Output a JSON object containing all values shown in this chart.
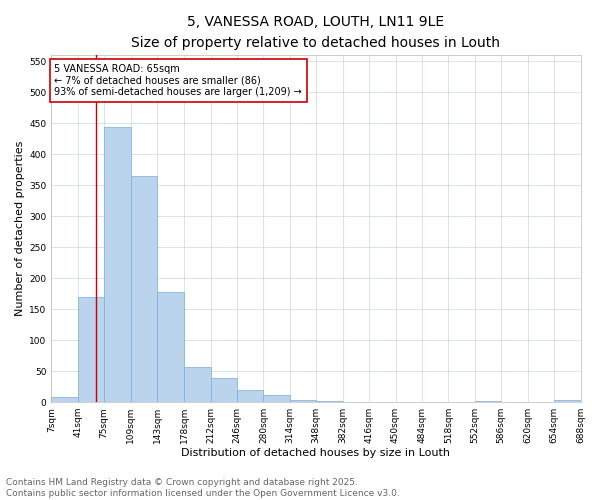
{
  "title": "5, VANESSA ROAD, LOUTH, LN11 9LE",
  "subtitle": "Size of property relative to detached houses in Louth",
  "xlabel": "Distribution of detached houses by size in Louth",
  "ylabel": "Number of detached properties",
  "bar_edges": [
    7,
    41,
    75,
    109,
    143,
    178,
    212,
    246,
    280,
    314,
    348,
    382,
    416,
    450,
    484,
    518,
    552,
    586,
    620,
    654,
    688
  ],
  "bar_heights": [
    8,
    170,
    443,
    365,
    178,
    56,
    39,
    20,
    11,
    3,
    1,
    0,
    0,
    0,
    0,
    0,
    1,
    0,
    0,
    3
  ],
  "bar_color": "#bad4ed",
  "bar_edge_color": "#7aafd4",
  "vline_x": 65,
  "vline_color": "#cc0000",
  "annotation_text": "5 VANESSA ROAD: 65sqm\n← 7% of detached houses are smaller (86)\n93% of semi-detached houses are larger (1,209) →",
  "annotation_box_color": "#cc0000",
  "ylim": [
    0,
    560
  ],
  "tick_labels": [
    "7sqm",
    "41sqm",
    "75sqm",
    "109sqm",
    "143sqm",
    "178sqm",
    "212sqm",
    "246sqm",
    "280sqm",
    "314sqm",
    "348sqm",
    "382sqm",
    "416sqm",
    "450sqm",
    "484sqm",
    "518sqm",
    "552sqm",
    "586sqm",
    "620sqm",
    "654sqm",
    "688sqm"
  ],
  "footer_line1": "Contains HM Land Registry data © Crown copyright and database right 2025.",
  "footer_line2": "Contains public sector information licensed under the Open Government Licence v3.0.",
  "bg_color": "#ffffff",
  "grid_color": "#c8d8e8",
  "title_fontsize": 10,
  "subtitle_fontsize": 9,
  "axis_label_fontsize": 8,
  "tick_fontsize": 6.5,
  "annotation_fontsize": 7,
  "footer_fontsize": 6.5
}
